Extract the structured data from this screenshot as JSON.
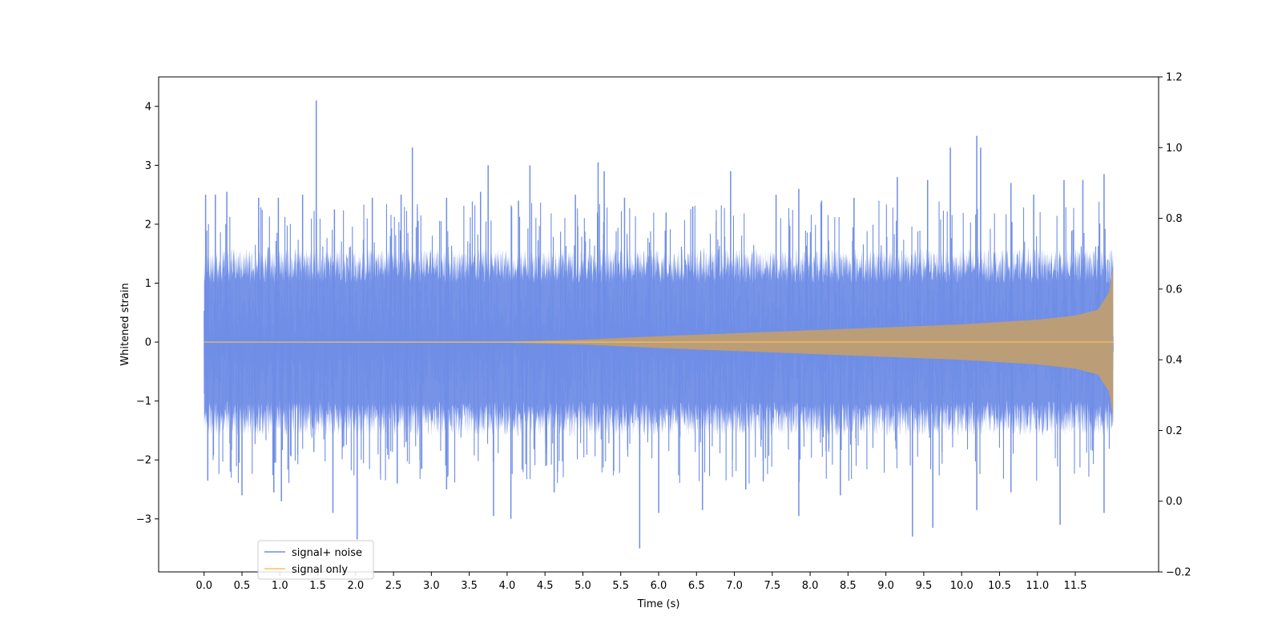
{
  "chart_data": {
    "type": "line",
    "title": "",
    "xlabel": "Time (s)",
    "ylabel": "Whitened strain",
    "y2label": "",
    "xlim": [
      -0.6,
      12.6
    ],
    "ylim": [
      -3.9,
      4.5
    ],
    "y2lim": [
      -0.2,
      1.2
    ],
    "grid": false,
    "legend_position": "lower-left",
    "x_ticks": [
      0.0,
      0.5,
      1.0,
      1.5,
      2.0,
      2.5,
      3.0,
      3.5,
      4.0,
      4.5,
      5.0,
      5.5,
      6.0,
      6.5,
      7.0,
      7.5,
      8.0,
      8.5,
      9.0,
      9.5,
      10.0,
      10.5,
      11.0,
      11.5
    ],
    "x_tick_labels": [
      "0.0",
      "0.5",
      "1.0",
      "1.5",
      "2.0",
      "2.5",
      "3.0",
      "3.5",
      "4.0",
      "4.5",
      "5.0",
      "5.5",
      "6.0",
      "6.5",
      "7.0",
      "7.5",
      "8.0",
      "8.5",
      "9.0",
      "9.5",
      "10.0",
      "10.5",
      "11.0",
      "11.5"
    ],
    "y_ticks": [
      -3,
      -2,
      -1,
      0,
      1,
      2,
      3,
      4
    ],
    "y_tick_labels": [
      "−3",
      "−2",
      "−1",
      "0",
      "1",
      "2",
      "3",
      "4"
    ],
    "y2_ticks": [
      -0.2,
      0.0,
      0.2,
      0.4,
      0.6,
      0.8,
      1.0,
      1.2
    ],
    "y2_tick_labels": [
      "−0.2",
      "0.0",
      "0.2",
      "0.4",
      "0.6",
      "0.8",
      "1.0",
      "1.2"
    ],
    "series": [
      {
        "name": "signal+ noise",
        "color": "#6f8de6",
        "x_start": 0.0,
        "x_end": 12.0,
        "typical_band": [
          -1.5,
          1.5
        ],
        "peaks_up": [
          [
            0.02,
            2.5
          ],
          [
            0.15,
            2.5
          ],
          [
            0.3,
            2.55
          ],
          [
            0.72,
            2.45
          ],
          [
            0.98,
            2.45
          ],
          [
            1.3,
            2.5
          ],
          [
            1.48,
            4.1
          ],
          [
            1.72,
            2.25
          ],
          [
            2.22,
            2.45
          ],
          [
            2.6,
            2.5
          ],
          [
            2.75,
            3.3
          ],
          [
            3.2,
            2.45
          ],
          [
            3.65,
            2.55
          ],
          [
            3.75,
            3.0
          ],
          [
            4.15,
            2.4
          ],
          [
            4.3,
            3.0
          ],
          [
            4.9,
            2.5
          ],
          [
            5.2,
            3.05
          ],
          [
            5.28,
            2.9
          ],
          [
            5.55,
            2.45
          ],
          [
            6.1,
            2.2
          ],
          [
            6.45,
            2.3
          ],
          [
            6.95,
            2.9
          ],
          [
            7.55,
            2.5
          ],
          [
            7.85,
            2.6
          ],
          [
            8.15,
            2.4
          ],
          [
            8.58,
            2.45
          ],
          [
            9.15,
            2.8
          ],
          [
            9.55,
            2.75
          ],
          [
            9.85,
            3.3
          ],
          [
            10.2,
            3.5
          ],
          [
            10.25,
            3.3
          ],
          [
            10.65,
            2.7
          ],
          [
            10.95,
            2.5
          ],
          [
            11.35,
            2.75
          ],
          [
            11.6,
            2.75
          ],
          [
            11.88,
            2.85
          ]
        ],
        "peaks_down": [
          [
            0.05,
            -2.35
          ],
          [
            0.5,
            -2.6
          ],
          [
            0.92,
            -2.55
          ],
          [
            1.02,
            -2.7
          ],
          [
            1.7,
            -2.9
          ],
          [
            2.02,
            -3.35
          ],
          [
            2.55,
            -2.4
          ],
          [
            3.2,
            -2.5
          ],
          [
            3.82,
            -2.95
          ],
          [
            4.05,
            -3.0
          ],
          [
            4.62,
            -2.55
          ],
          [
            5.75,
            -3.5
          ],
          [
            6.0,
            -2.9
          ],
          [
            6.58,
            -2.85
          ],
          [
            7.15,
            -2.5
          ],
          [
            7.85,
            -2.95
          ],
          [
            8.4,
            -2.6
          ],
          [
            9.35,
            -3.3
          ],
          [
            9.62,
            -3.15
          ],
          [
            10.2,
            -2.85
          ],
          [
            10.65,
            -2.55
          ],
          [
            11.3,
            -3.1
          ],
          [
            11.88,
            -2.9
          ]
        ]
      },
      {
        "name": "signal only",
        "color": "#fbc15e",
        "x_start": 0.0,
        "x_end": 12.0,
        "envelope": [
          [
            0.0,
            0.005
          ],
          [
            4.0,
            0.01
          ],
          [
            5.0,
            0.04
          ],
          [
            6.0,
            0.1
          ],
          [
            7.0,
            0.15
          ],
          [
            8.0,
            0.2
          ],
          [
            9.0,
            0.25
          ],
          [
            10.0,
            0.3
          ],
          [
            11.0,
            0.38
          ],
          [
            11.5,
            0.45
          ],
          [
            11.8,
            0.55
          ],
          [
            11.95,
            0.85
          ],
          [
            12.0,
            1.3
          ]
        ]
      }
    ]
  }
}
